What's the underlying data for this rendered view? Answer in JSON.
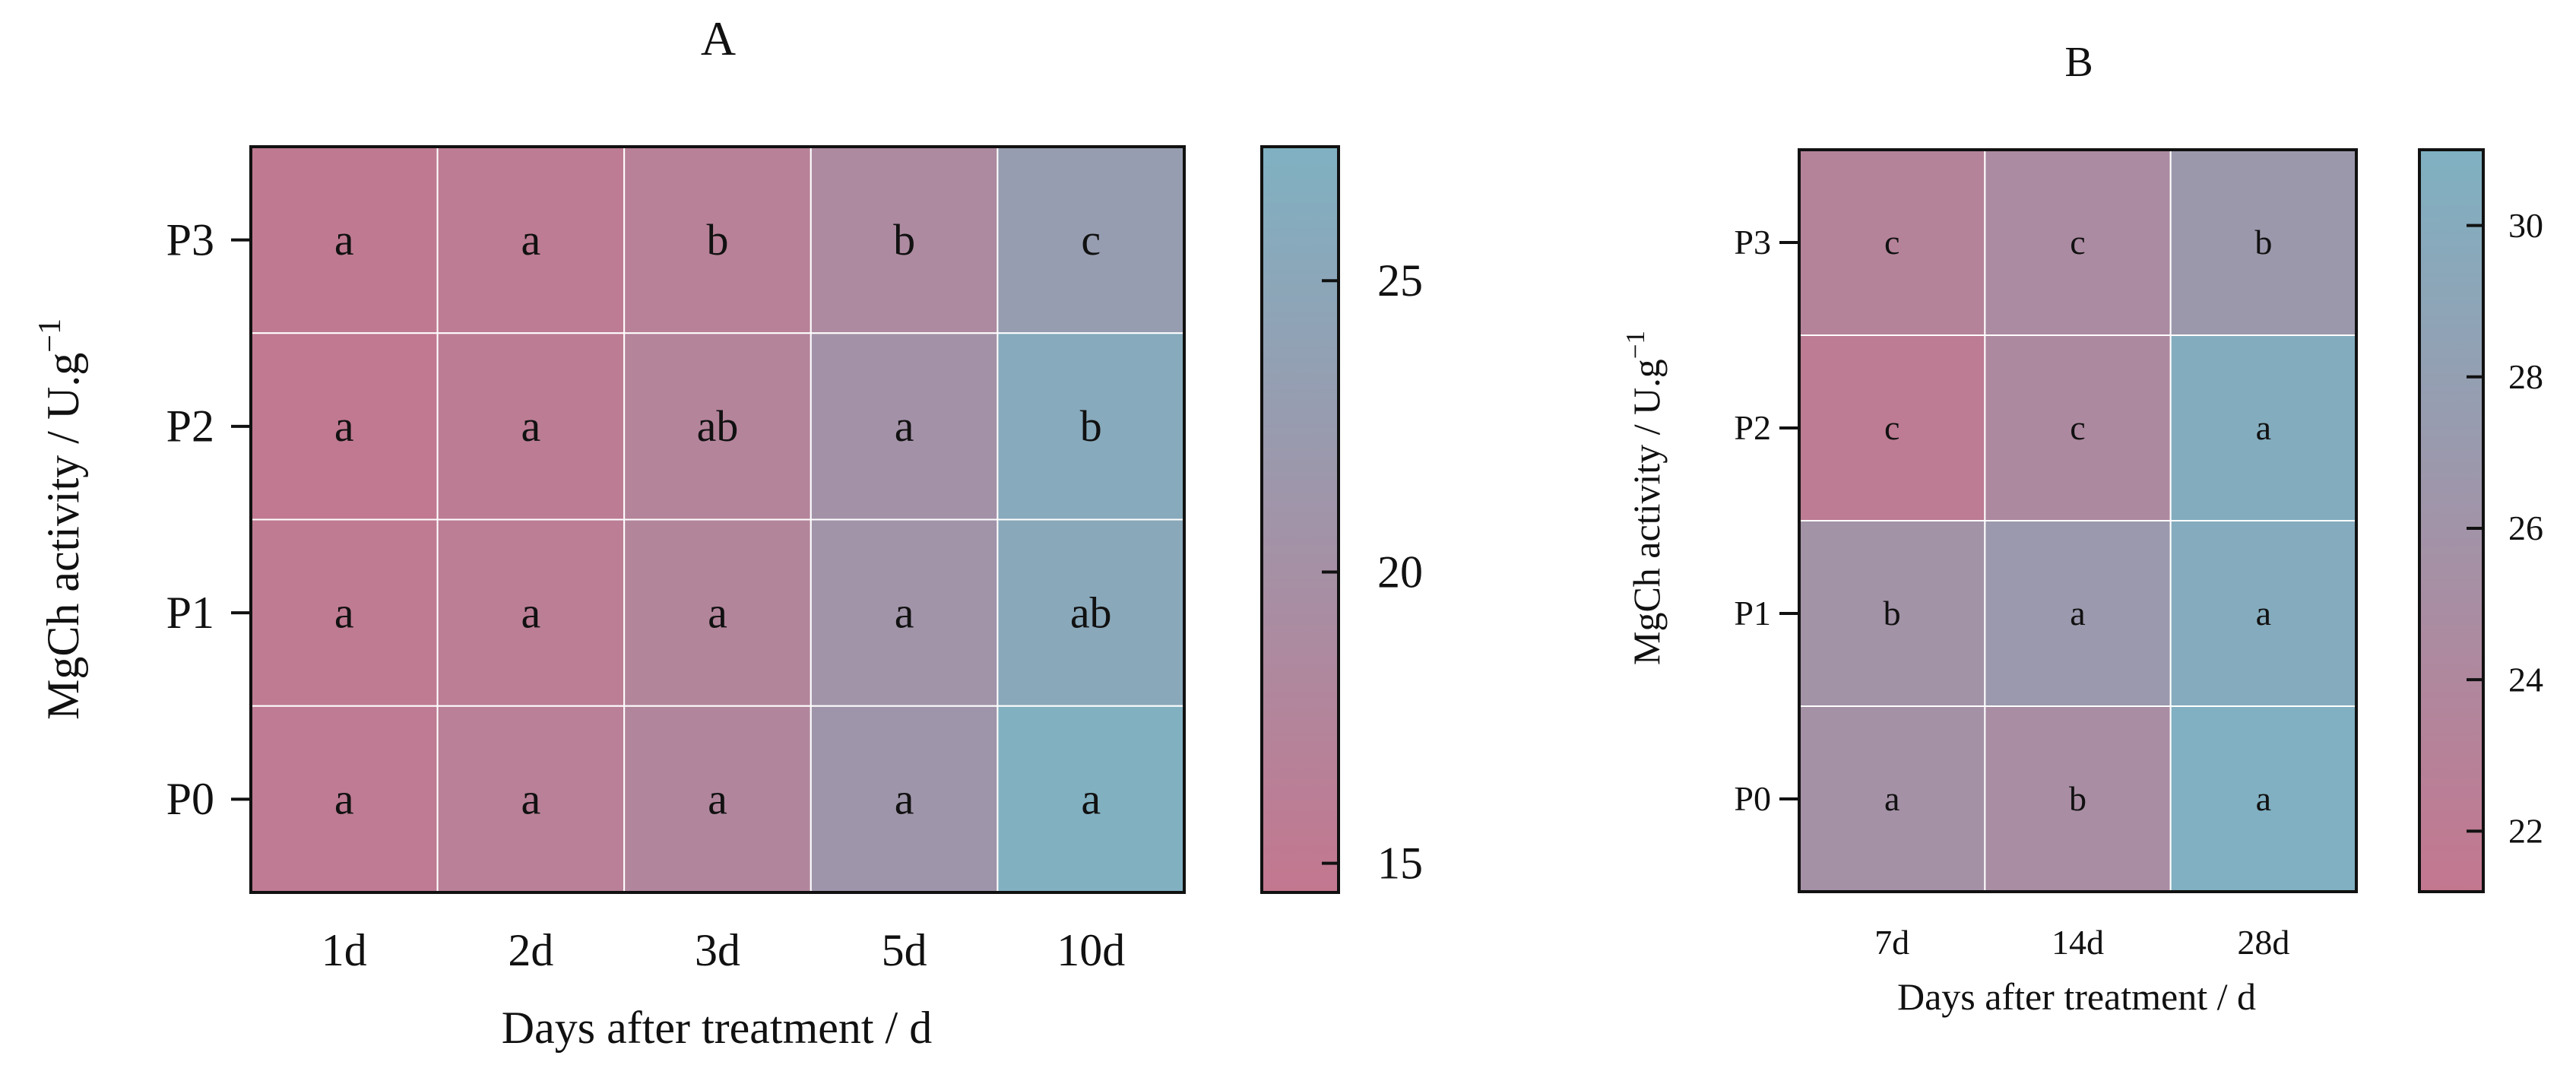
{
  "chart_data": [
    {
      "type": "heatmap",
      "title": "A",
      "xlabel": "Days after treatment / d",
      "ylabel_text": "MgCh activity / U.g",
      "ylabel_sup": "−1",
      "x": [
        "1d",
        "2d",
        "3d",
        "5d",
        "10d"
      ],
      "y": [
        "P3",
        "P2",
        "P1",
        "P0"
      ],
      "values": [
        [
          15.2,
          15.6,
          16.6,
          18.7,
          22.9
        ],
        [
          15.0,
          15.8,
          17.4,
          20.5,
          25.8
        ],
        [
          15.3,
          16.0,
          17.6,
          20.9,
          25.4
        ],
        [
          15.4,
          16.4,
          17.9,
          21.2,
          27.0
        ]
      ],
      "labels": [
        [
          "a",
          "a",
          "b",
          "b",
          "c"
        ],
        [
          "a",
          "a",
          "ab",
          "a",
          "b"
        ],
        [
          "a",
          "a",
          "a",
          "a",
          "ab"
        ],
        [
          "a",
          "a",
          "a",
          "a",
          "a"
        ]
      ],
      "colorbar": {
        "min": 14.5,
        "max": 27.3,
        "ticks": [
          15,
          20,
          25
        ]
      },
      "colors": {
        "low": "#c3778f",
        "high": "#7fb1c2",
        "gridline": "#ffffff"
      },
      "grid": true
    },
    {
      "type": "heatmap",
      "title": "B",
      "xlabel": "Days after treatment / d",
      "ylabel_text": "MgCh activity / U.g",
      "ylabel_sup": "−1",
      "x": [
        "7d",
        "14d",
        "28d"
      ],
      "y": [
        "P3",
        "P2",
        "P1",
        "P0"
      ],
      "values": [
        [
          23.2,
          24.6,
          26.8
        ],
        [
          22.0,
          24.3,
          30.4
        ],
        [
          25.9,
          27.0,
          30.2
        ],
        [
          25.6,
          25.0,
          30.9
        ]
      ],
      "labels": [
        [
          "c",
          "c",
          "b"
        ],
        [
          "c",
          "c",
          "a"
        ],
        [
          "b",
          "a",
          "a"
        ],
        [
          "a",
          "b",
          "a"
        ]
      ],
      "colorbar": {
        "min": 21.2,
        "max": 31.0,
        "ticks": [
          22,
          24,
          26,
          28,
          30
        ]
      },
      "colors": {
        "low": "#c3778f",
        "high": "#7fb1c2",
        "gridline": "#ffffff"
      },
      "grid": true
    }
  ]
}
